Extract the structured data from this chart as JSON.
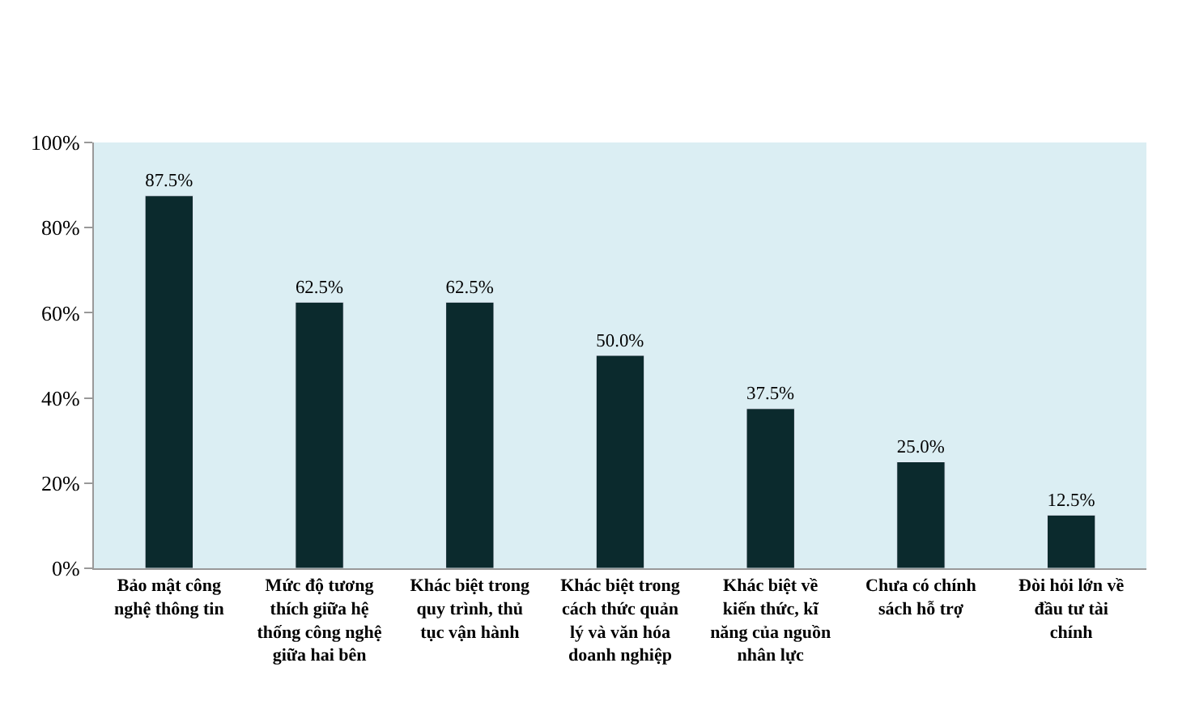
{
  "chart_data": {
    "type": "bar",
    "categories": [
      "Bảo mật công nghệ thông tin",
      "Mức độ tương thích giữa hệ thống công nghệ giữa hai bên",
      "Khác biệt trong quy trình, thủ tục vận hành",
      "Khác biệt trong cách thức quản lý và văn hóa doanh nghiệp",
      "Khác biệt về kiến thức, kĩ năng của nguồn nhân lực",
      "Chưa có chính sách hỗ trợ",
      "Đòi hỏi lớn về đầu tư tài chính"
    ],
    "values": [
      87.5,
      62.5,
      62.5,
      50.0,
      37.5,
      25.0,
      12.5
    ],
    "value_labels": [
      "87.5%",
      "62.5%",
      "62.5%",
      "50.0%",
      "37.5%",
      "25.0%",
      "12.5%"
    ],
    "color": "#0b2a2d",
    "ylim": [
      0,
      100
    ],
    "yticks": [
      {
        "value": 0,
        "label": "0%"
      },
      {
        "value": 20,
        "label": "20%"
      },
      {
        "value": 40,
        "label": "40%"
      },
      {
        "value": 60,
        "label": "60%"
      },
      {
        "value": 80,
        "label": "80%"
      },
      {
        "value": 100,
        "label": "100%"
      }
    ],
    "grid": false,
    "legend": false
  }
}
